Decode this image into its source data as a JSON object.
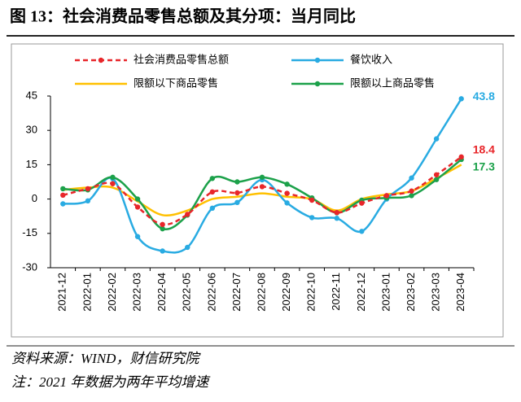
{
  "chart_data": {
    "type": "line",
    "title": "图 13：社会消费品零售总额及其分项：当月同比",
    "source": "资料来源：WIND，财信研究院",
    "note": "注：2021 年数据为两年平均增速",
    "categories": [
      "2021-12",
      "2022-01",
      "2022-02",
      "2022-03",
      "2022-04",
      "2022-05",
      "2022-06",
      "2022-07",
      "2022-08",
      "2022-09",
      "2022-10",
      "2022-11",
      "2022-12",
      "2023-01",
      "2023-02",
      "2023-03",
      "2023-04"
    ],
    "ylim": [
      -30,
      45
    ],
    "yticks": [
      45,
      30,
      15,
      0,
      -15,
      -30
    ],
    "series": [
      {
        "name": "社会消费品零售总额",
        "color": "#e8262a",
        "dash": true,
        "marker": true,
        "values": [
          1.7,
          4.5,
          6.7,
          -3.5,
          -11.1,
          -6.7,
          3.1,
          2.7,
          5.4,
          2.5,
          -0.5,
          -5.9,
          -1.8,
          1.5,
          3.5,
          10.6,
          18.4
        ]
      },
      {
        "name": "餐饮收入",
        "color": "#29abe2",
        "dash": false,
        "marker": true,
        "values": [
          -2.1,
          -0.8,
          8.9,
          -16.4,
          -22.7,
          -21.1,
          -4.0,
          -1.5,
          8.4,
          -1.7,
          -8.1,
          -8.4,
          -14.1,
          0,
          9.2,
          26.3,
          43.8
        ]
      },
      {
        "name": "限额以下商品零售",
        "color": "#ffc000",
        "dash": false,
        "marker": false,
        "values": [
          4,
          5,
          5,
          -1,
          -7,
          -5,
          0,
          1,
          2.5,
          1,
          0,
          -5,
          0,
          2,
          3.5,
          9,
          15
        ]
      },
      {
        "name": "限额以上商品零售",
        "color": "#1ca14a",
        "dash": false,
        "marker": true,
        "values": [
          4.5,
          4,
          9.5,
          0,
          -13,
          -7,
          9,
          7.5,
          9.5,
          6.5,
          0.5,
          -6,
          -0.5,
          0.5,
          1.5,
          8.5,
          17.3
        ]
      }
    ],
    "labeled_points": [
      [
        1,
        16
      ],
      [
        0,
        16
      ],
      [
        3,
        16
      ]
    ]
  }
}
